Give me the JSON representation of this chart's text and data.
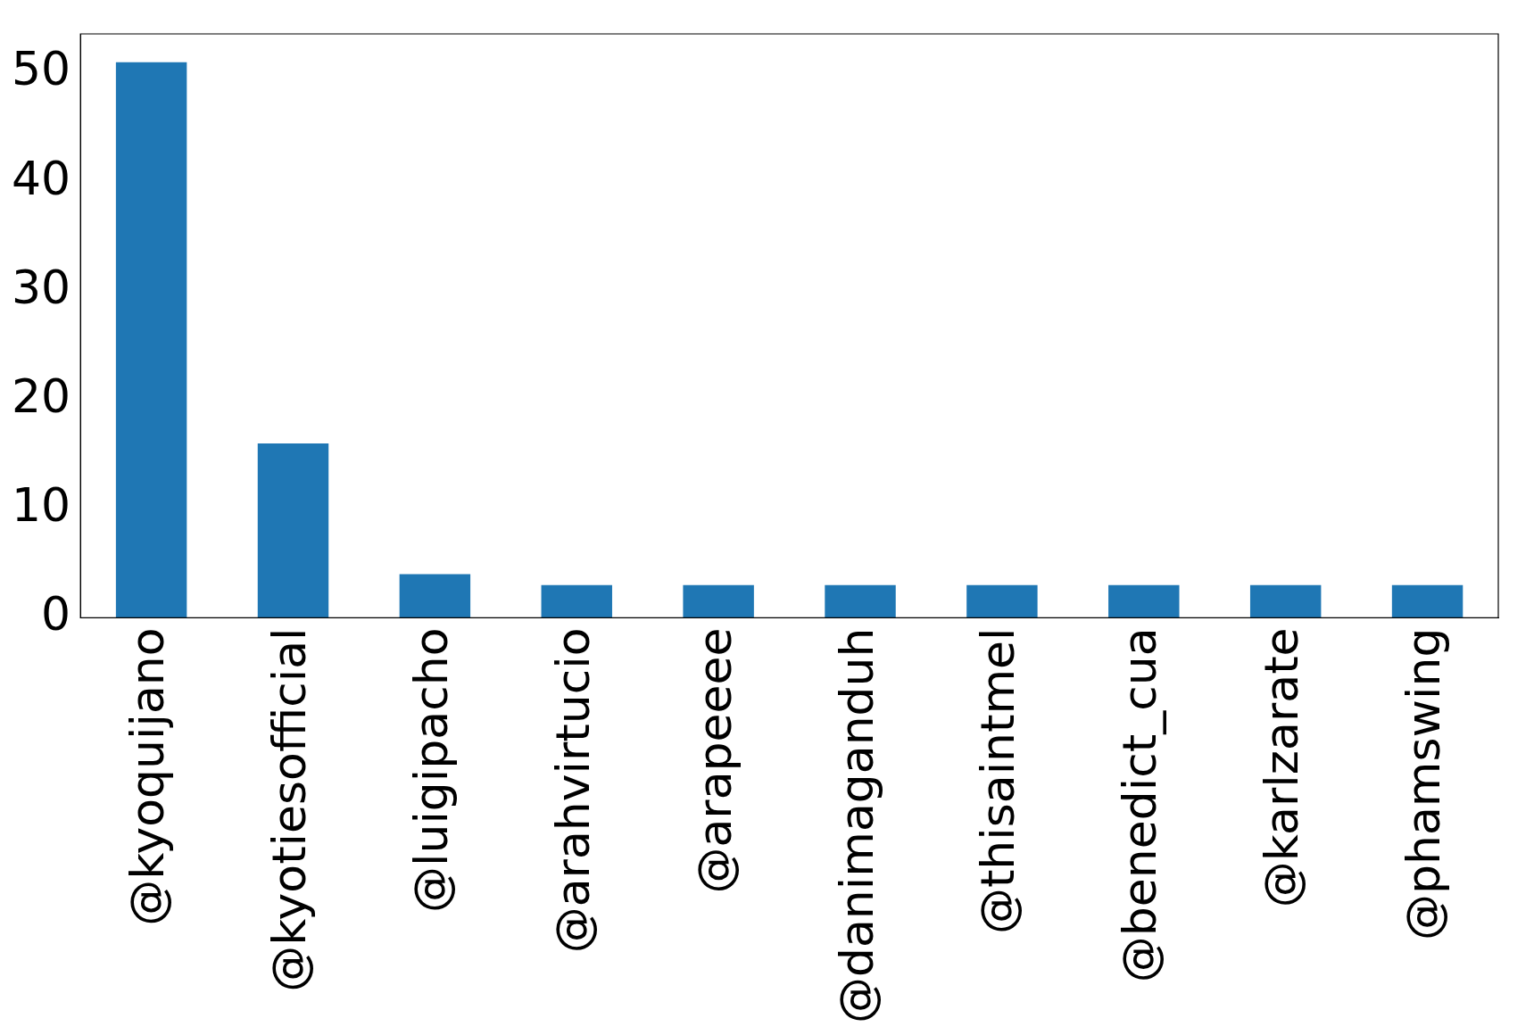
{
  "chart_data": {
    "type": "bar",
    "categories": [
      "@kyoquijano",
      "@kyotiesofficial",
      "@luigipacho",
      "@arahvirtucio",
      "@arapeeee",
      "@danimaganduh",
      "@thisaintmel",
      "@benedict_cua",
      "@karlzarate",
      "@phamswing"
    ],
    "values": [
      51,
      16,
      4,
      3,
      3,
      3,
      3,
      3,
      3,
      3
    ],
    "color": "#1f77b4",
    "ylim": [
      0,
      53.6
    ],
    "yticks": [
      0,
      10,
      20,
      30,
      40,
      50
    ],
    "grid": false,
    "legend": false
  }
}
